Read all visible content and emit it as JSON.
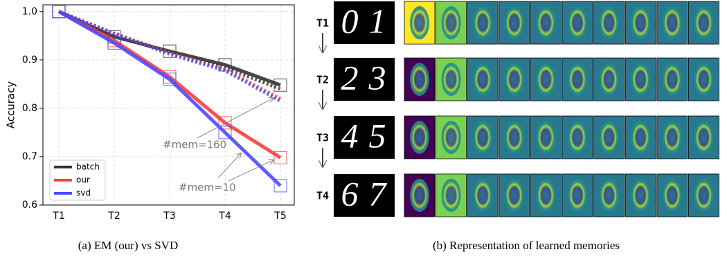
{
  "chart_data": {
    "type": "line",
    "y_label": "Accuracy",
    "categories": [
      "T1",
      "T2",
      "T3",
      "T4",
      "T5"
    ],
    "series": [
      {
        "name": "batch",
        "color": "#333333",
        "values": [
          1.0,
          0.948,
          0.918,
          0.89,
          0.848
        ],
        "dotted_values": [
          1.0,
          0.952,
          0.915,
          0.884,
          0.84
        ]
      },
      {
        "name": "our",
        "color": "#ff3b3b",
        "values": [
          1.0,
          0.94,
          0.865,
          0.77,
          0.698
        ],
        "dotted_values": [
          1.0,
          0.955,
          0.915,
          0.88,
          0.82
        ]
      },
      {
        "name": "svd",
        "color": "#4a4aff",
        "values": [
          1.0,
          0.935,
          0.86,
          0.75,
          0.64
        ],
        "dotted_values": [
          1.0,
          0.955,
          0.912,
          0.878,
          0.815
        ]
      }
    ],
    "ylim": [
      0.6,
      1.014
    ],
    "yticks": [
      {
        "value": 0.6,
        "label": "0.6"
      },
      {
        "value": 0.7,
        "label": "0.7"
      },
      {
        "value": 0.8,
        "label": "0.8"
      },
      {
        "value": 0.9,
        "label": "0.9"
      },
      {
        "value": 1.0,
        "label": "1.0"
      }
    ],
    "grid": true,
    "legend": "lower left",
    "annotations": [
      "#mem=160",
      "#mem=10"
    ],
    "caption": "(a) EM (our) vs SVD"
  },
  "memories": {
    "rows": [
      {
        "label": "T1",
        "digits": [
          "0",
          "1"
        ]
      },
      {
        "label": "T2",
        "digits": [
          "2",
          "3"
        ]
      },
      {
        "label": "T3",
        "digits": [
          "4",
          "5"
        ]
      },
      {
        "label": "T4",
        "digits": [
          "6",
          "7"
        ]
      }
    ],
    "caption": "(b) Representation of learned memories"
  }
}
